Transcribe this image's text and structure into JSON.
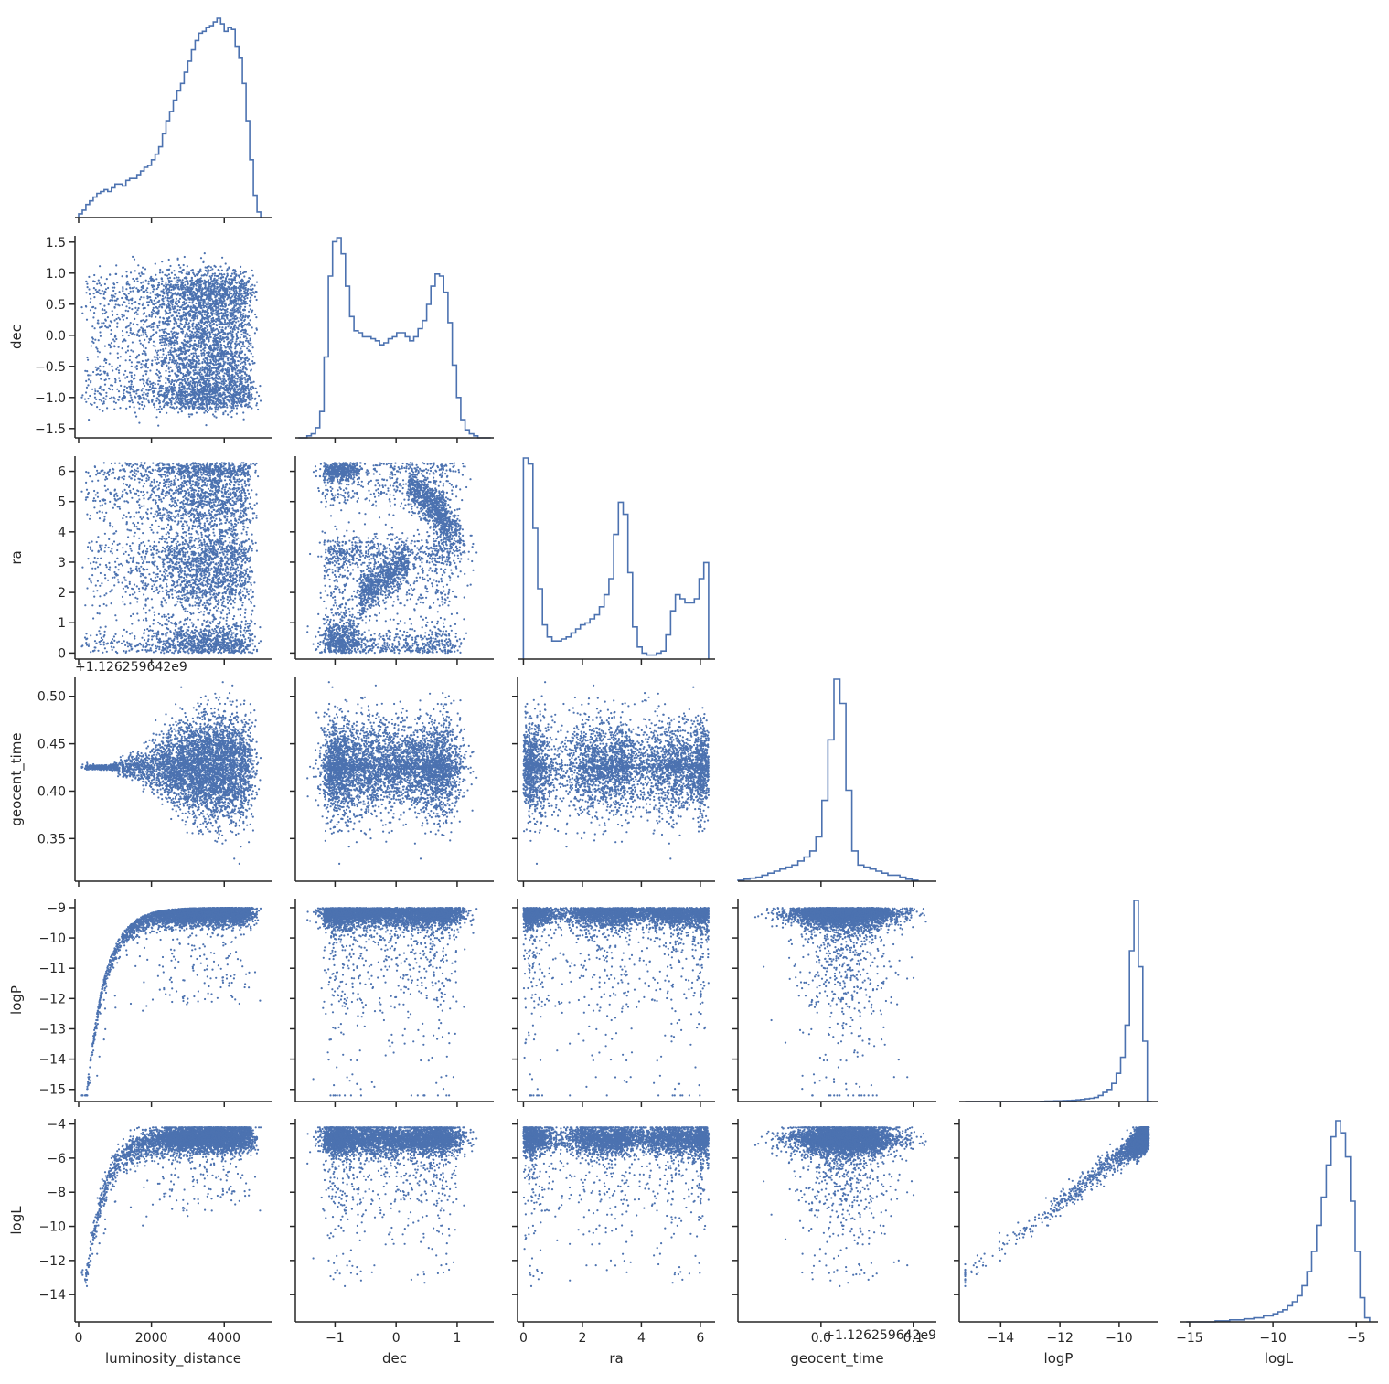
{
  "figure": {
    "title": "",
    "variables": [
      "luminosity_distance",
      "dec",
      "ra",
      "geocent_time",
      "logP",
      "logL"
    ],
    "axis_labels": {
      "luminosity_distance": "luminosity_distance",
      "dec": "dec",
      "ra": "ra",
      "geocent_time": "geocent_time",
      "logP": "logP",
      "logL": "logL"
    },
    "offset_labels": {
      "geocent_time_y": "+1.126259642e9",
      "geocent_time_x": "+1.126259642e9"
    },
    "colors": {
      "marks": "#4c72b0",
      "axes": "#262626"
    }
  },
  "chart_data": {
    "type": "scatter",
    "layout": "corner-pairplot",
    "diagonal": "histogram (step)",
    "axes": {
      "luminosity_distance": {
        "range": [
          -100,
          5300
        ],
        "ticks": [
          0,
          2000,
          4000
        ],
        "tick_labels": [
          "0",
          "2000",
          "4000"
        ]
      },
      "dec": {
        "range": [
          -1.65,
          1.6
        ],
        "ticks": [
          -1.5,
          -1.0,
          -0.5,
          0.0,
          0.5,
          1.0,
          1.5
        ],
        "tick_labels": [
          "−1.5",
          "−1.0",
          "−0.5",
          "0.0",
          "0.5",
          "1.0",
          "1.5"
        ],
        "x_ticks": [
          -1,
          0,
          1
        ],
        "x_tick_labels": [
          "−1",
          "0",
          "1"
        ]
      },
      "ra": {
        "range": [
          -0.2,
          6.5
        ],
        "ticks": [
          0,
          1,
          2,
          3,
          4,
          5,
          6
        ],
        "tick_labels": [
          "0",
          "1",
          "2",
          "3",
          "4",
          "5",
          "6"
        ],
        "x_ticks": [
          0,
          2,
          4,
          6
        ],
        "x_tick_labels": [
          "0",
          "2",
          "4",
          "6"
        ]
      },
      "geocent_time": {
        "range": [
          -0.09,
          0.125
        ],
        "y_range": [
          0.305,
          0.52
        ],
        "ticks": [
          0.35,
          0.4,
          0.45,
          0.5
        ],
        "tick_labels": [
          "0.35",
          "0.40",
          "0.45",
          "0.50"
        ],
        "x_ticks": [
          0.0,
          0.1
        ],
        "x_tick_labels": [
          "0.0",
          "0.1"
        ]
      },
      "logP": {
        "range": [
          -15.4,
          -8.7
        ],
        "ticks": [
          -15,
          -14,
          -13,
          -12,
          -11,
          -10,
          -9
        ],
        "tick_labels": [
          "−15",
          "−14",
          "−13",
          "−12",
          "−11",
          "−10",
          "−9"
        ],
        "x_ticks": [
          -14,
          -12,
          -10
        ],
        "x_tick_labels": [
          "−14",
          "−12",
          "−10"
        ]
      },
      "logL": {
        "range": [
          -15.6,
          -3.7
        ],
        "ticks": [
          -14,
          -12,
          -10,
          -8,
          -6,
          -4
        ],
        "tick_labels": [
          "−14",
          "−12",
          "−10",
          "−8",
          "−6",
          "−4"
        ],
        "x_ticks": [
          -15,
          -10,
          -5
        ],
        "x_tick_labels": [
          "−15",
          "−10",
          "−5"
        ]
      }
    },
    "histograms": {
      "luminosity_distance": {
        "edges": [
          0,
          5000
        ],
        "counts": [
          2,
          4,
          7,
          9,
          11,
          13,
          14,
          15,
          14,
          16,
          18,
          18,
          17,
          20,
          21,
          21,
          23,
          25,
          27,
          28,
          31,
          34,
          38,
          45,
          52,
          57,
          63,
          68,
          72,
          78,
          84,
          90,
          95,
          99,
          100,
          102,
          103,
          105,
          107,
          104,
          100,
          102,
          101,
          92,
          86,
          72,
          52,
          31,
          12,
          3
        ]
      },
      "dec": {
        "edges": [
          -1.6,
          1.55
        ],
        "counts": [
          0,
          0,
          1,
          2,
          5,
          13,
          40,
          80,
          97,
          99,
          91,
          75,
          60,
          53,
          52,
          50,
          50,
          49,
          48,
          46,
          47,
          49,
          50,
          52,
          52,
          50,
          48,
          50,
          54,
          58,
          66,
          75,
          81,
          80,
          72,
          57,
          36,
          20,
          9,
          4,
          2,
          1,
          0,
          0,
          0
        ]
      },
      "ra": {
        "edges": [
          0,
          6.28
        ],
        "counts": [
          100,
          97,
          65,
          35,
          17,
          11,
          9,
          9,
          10,
          11,
          13,
          15,
          17,
          18,
          20,
          22,
          26,
          32,
          40,
          62,
          78,
          72,
          43,
          16,
          6,
          3,
          2,
          2,
          3,
          4,
          12,
          24,
          32,
          30,
          28,
          28,
          30,
          40,
          48
        ]
      },
      "geocent_time": {
        "edges": [
          -0.09,
          0.105
        ],
        "counts": [
          0.5,
          1,
          1.5,
          2,
          3,
          4,
          5,
          6,
          7,
          8,
          10,
          12,
          15,
          22,
          40,
          70,
          100,
          88,
          45,
          15,
          8,
          7,
          6,
          5,
          4,
          3,
          3,
          2,
          1,
          0.5
        ]
      },
      "logP": {
        "edges": [
          -15.2,
          -8.9
        ],
        "counts": [
          0,
          0,
          0,
          0,
          0,
          0,
          0,
          0,
          0,
          0,
          0,
          0,
          0,
          0,
          0,
          0,
          0,
          0.1,
          0.2,
          0.2,
          0.3,
          0.3,
          0.4,
          0.5,
          0.6,
          0.8,
          1,
          1.3,
          1.6,
          2,
          3,
          4.5,
          6,
          9,
          14,
          22,
          38,
          75,
          100,
          67,
          30,
          0
        ]
      },
      "logL": {
        "edges": [
          -15.2,
          -4.2
        ],
        "counts": [
          0,
          0,
          0,
          0,
          0,
          0,
          0.5,
          0.5,
          0.5,
          1,
          1,
          1,
          1.5,
          1.5,
          2,
          2,
          3,
          3,
          4,
          5,
          6,
          8,
          10,
          13,
          18,
          25,
          35,
          48,
          62,
          78,
          92,
          100,
          94,
          82,
          60,
          35,
          12,
          2
        ]
      }
    }
  }
}
